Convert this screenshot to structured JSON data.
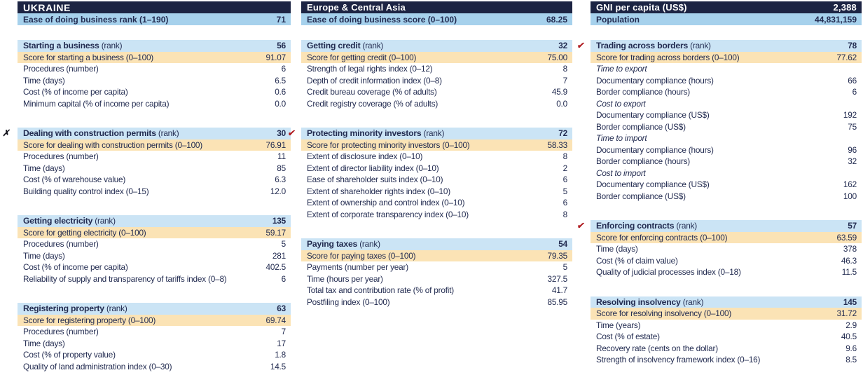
{
  "report": "Doing Business country profile sheet",
  "icons": {
    "check_glyph": "✔",
    "x_glyph": "✗"
  },
  "colors": {
    "navy_bar": "#1c2443",
    "subheader_blue": "#a6d1ec",
    "section_header_blue": "#cbe4f5",
    "score_orange": "#fbe3b5",
    "text_navy": "#232c51",
    "check_red": "#b11e23",
    "x_mark_black": "#16161f"
  },
  "columns": [
    {
      "title": "UKRAINE",
      "title_value": "",
      "subheader": {
        "label": "Ease of doing business rank (1–190)",
        "value": "71"
      },
      "sections": [
        {
          "mark": "",
          "name": "Starting a business",
          "suffix": "(rank)",
          "rank": "56",
          "rows": [
            {
              "type": "score",
              "label": "Score for starting a business (0–100)",
              "value": "91.07"
            },
            {
              "type": "item",
              "label": "Procedures (number)",
              "value": "6"
            },
            {
              "type": "item",
              "label": "Time (days)",
              "value": "6.5"
            },
            {
              "type": "item",
              "label": "Cost (% of income per capita)",
              "value": "0.6"
            },
            {
              "type": "item",
              "label": "Minimum capital (% of income per capita)",
              "value": "0.0"
            }
          ]
        },
        {
          "mark": "x",
          "name": "Dealing with construction permits",
          "suffix": "(rank)",
          "rank": "30",
          "rows": [
            {
              "type": "score",
              "label": "Score for dealing with construction permits (0–100)",
              "value": "76.91"
            },
            {
              "type": "item",
              "label": "Procedures (number)",
              "value": "11"
            },
            {
              "type": "item",
              "label": "Time (days)",
              "value": "85"
            },
            {
              "type": "item",
              "label": "Cost (% of warehouse value)",
              "value": "6.3"
            },
            {
              "type": "item",
              "label": "Building quality control index (0–15)",
              "value": "12.0"
            }
          ]
        },
        {
          "mark": "",
          "name": "Getting electricity",
          "suffix": "(rank)",
          "rank": "135",
          "rows": [
            {
              "type": "score",
              "label": "Score for getting electricity (0–100)",
              "value": "59.17"
            },
            {
              "type": "item",
              "label": "Procedures (number)",
              "value": "5"
            },
            {
              "type": "item",
              "label": "Time (days)",
              "value": "281"
            },
            {
              "type": "item",
              "label": "Cost (% of income per capita)",
              "value": "402.5"
            },
            {
              "type": "item",
              "label": "Reliability of supply and transparency of tariffs index (0–8)",
              "value": "6"
            }
          ]
        },
        {
          "mark": "",
          "name": "Registering property",
          "suffix": "(rank)",
          "rank": "63",
          "rows": [
            {
              "type": "score",
              "label": "Score for registering property (0–100)",
              "value": "69.74"
            },
            {
              "type": "item",
              "label": "Procedures (number)",
              "value": "7"
            },
            {
              "type": "item",
              "label": "Time (days)",
              "value": "17"
            },
            {
              "type": "item",
              "label": "Cost (% of property value)",
              "value": "1.8"
            },
            {
              "type": "item",
              "label": "Quality of land administration index (0–30)",
              "value": "14.5"
            }
          ]
        }
      ]
    },
    {
      "title": "Europe & Central Asia",
      "title_value": "",
      "subheader": {
        "label": "Ease of doing business score (0–100)",
        "value": "68.25"
      },
      "sections": [
        {
          "mark": "",
          "name": "Getting credit",
          "suffix": "(rank)",
          "rank": "32",
          "rows": [
            {
              "type": "score",
              "label": "Score for getting credit (0–100)",
              "value": "75.00"
            },
            {
              "type": "item",
              "label": "Strength of legal rights index (0–12)",
              "value": "8"
            },
            {
              "type": "item",
              "label": "Depth of credit information index (0–8)",
              "value": "7"
            },
            {
              "type": "item",
              "label": "Credit bureau coverage (% of adults)",
              "value": "45.9"
            },
            {
              "type": "item",
              "label": "Credit registry coverage (% of adults)",
              "value": "0.0"
            }
          ]
        },
        {
          "mark": "check",
          "name": "Protecting minority investors",
          "suffix": "(rank)",
          "rank": "72",
          "rows": [
            {
              "type": "score",
              "label": "Score for protecting minority investors (0–100)",
              "value": "58.33"
            },
            {
              "type": "item",
              "label": "Extent of disclosure index (0–10)",
              "value": "8"
            },
            {
              "type": "item",
              "label": "Extent of director liability index (0–10)",
              "value": "2"
            },
            {
              "type": "item",
              "label": "Ease of shareholder suits index (0–10)",
              "value": "6"
            },
            {
              "type": "item",
              "label": "Extent of shareholder rights index (0–10)",
              "value": "5"
            },
            {
              "type": "item",
              "label": "Extent of ownership and control index (0–10)",
              "value": "6"
            },
            {
              "type": "item",
              "label": "Extent of corporate transparency index (0–10)",
              "value": "8"
            }
          ]
        },
        {
          "mark": "",
          "name": "Paying taxes",
          "suffix": "(rank)",
          "rank": "54",
          "rows": [
            {
              "type": "score",
              "label": "Score for paying taxes (0–100)",
              "value": "79.35"
            },
            {
              "type": "item",
              "label": "Payments (number per year)",
              "value": "5"
            },
            {
              "type": "item",
              "label": "Time (hours per year)",
              "value": "327.5"
            },
            {
              "type": "item",
              "label": "Total tax and contribution rate (% of profit)",
              "value": "41.7"
            },
            {
              "type": "item",
              "label": "Postfiling index (0–100)",
              "value": "85.95"
            }
          ]
        }
      ]
    },
    {
      "title": "GNI per capita (US$)",
      "title_value": "2,388",
      "subheader": {
        "label": "Population",
        "value": "44,831,159"
      },
      "sections": [
        {
          "mark": "check",
          "name": "Trading across borders",
          "suffix": "(rank)",
          "rank": "78",
          "rows": [
            {
              "type": "score",
              "label": "Score for trading across borders (0–100)",
              "value": "77.62"
            },
            {
              "type": "subhead",
              "label": "Time to export",
              "value": ""
            },
            {
              "type": "item",
              "label": "Documentary compliance (hours)",
              "value": "66"
            },
            {
              "type": "item",
              "label": "Border compliance (hours)",
              "value": "6"
            },
            {
              "type": "subhead",
              "label": "Cost to export",
              "value": ""
            },
            {
              "type": "item",
              "label": "Documentary compliance (US$)",
              "value": "192"
            },
            {
              "type": "item",
              "label": "Border compliance (US$)",
              "value": "75"
            },
            {
              "type": "subhead",
              "label": "Time to import",
              "value": ""
            },
            {
              "type": "item",
              "label": "Documentary compliance (hours)",
              "value": "96"
            },
            {
              "type": "item",
              "label": "Border compliance (hours)",
              "value": "32"
            },
            {
              "type": "subhead",
              "label": "Cost to import",
              "value": ""
            },
            {
              "type": "item",
              "label": "Documentary compliance (US$)",
              "value": "162"
            },
            {
              "type": "item",
              "label": "Border compliance (US$)",
              "value": "100"
            }
          ]
        },
        {
          "mark": "check",
          "name": "Enforcing contracts",
          "suffix": "(rank)",
          "rank": "57",
          "rows": [
            {
              "type": "score",
              "label": "Score for enforcing contracts (0–100)",
              "value": "63.59"
            },
            {
              "type": "item",
              "label": "Time (days)",
              "value": "378"
            },
            {
              "type": "item",
              "label": "Cost (% of claim value)",
              "value": "46.3"
            },
            {
              "type": "item",
              "label": "Quality of judicial processes index (0–18)",
              "value": "11.5"
            }
          ]
        },
        {
          "mark": "",
          "name": "Resolving insolvency",
          "suffix": "(rank)",
          "rank": "145",
          "rows": [
            {
              "type": "score",
              "label": "Score for resolving insolvency (0–100)",
              "value": "31.72"
            },
            {
              "type": "item",
              "label": "Time (years)",
              "value": "2.9"
            },
            {
              "type": "item",
              "label": "Cost (% of estate)",
              "value": "40.5"
            },
            {
              "type": "item",
              "label": "Recovery rate (cents on the dollar)",
              "value": "9.6"
            },
            {
              "type": "item",
              "label": "Strength of insolvency framework index (0–16)",
              "value": "8.5"
            }
          ]
        }
      ]
    }
  ]
}
